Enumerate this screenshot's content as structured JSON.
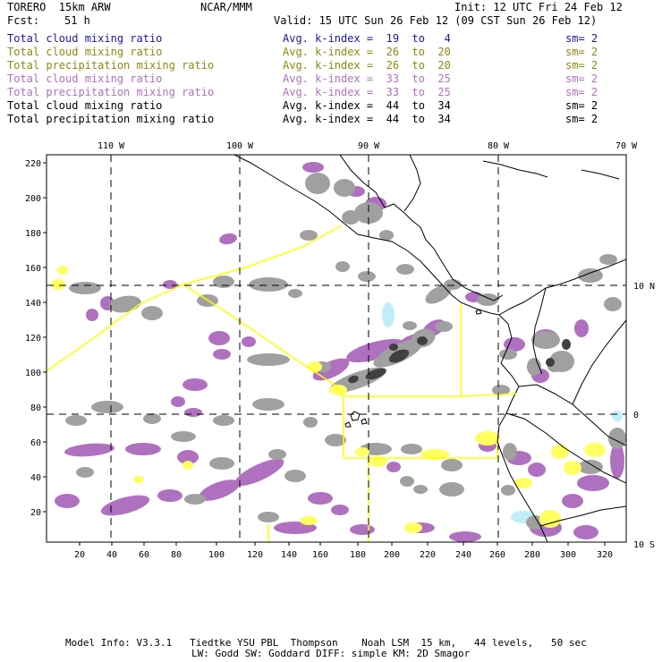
{
  "header": {
    "model": "TORERO  15km ARW",
    "center": "NCAR/MMM",
    "init": "Init: 12 UTC Fri 24 Feb 12",
    "fcst_label": "Fcst:",
    "fcst_value": "51 h",
    "valid": "Valid: 15 UTC Sun 26 Feb 12 (09 CST Sun 26 Feb 12)"
  },
  "legend_rows": [
    {
      "field": "Total cloud mixing ratio",
      "kindex": "Avg. k-index =  19  to   4",
      "sm": "sm= 2",
      "color": "#1a1aa0"
    },
    {
      "field": "Total cloud mixing ratio",
      "kindex": "Avg. k-index =  26  to  20",
      "sm": "sm= 2",
      "color": "#8a8a10"
    },
    {
      "field": "Total precipitation mixing ratio",
      "kindex": "Avg. k-index =  26  to  20",
      "sm": "sm= 2",
      "color": "#8a8a10"
    },
    {
      "field": "Total cloud mixing ratio",
      "kindex": "Avg. k-index =  33  to  25",
      "sm": "sm= 2",
      "color": "#b070c0"
    },
    {
      "field": "Total precipitation mixing ratio",
      "kindex": "Avg. k-index =  33  to  25",
      "sm": "sm= 2",
      "color": "#b070c0"
    },
    {
      "field": "Total cloud mixing ratio",
      "kindex": "Avg. k-index =  44  to  34",
      "sm": "sm= 2",
      "color": "#000000"
    },
    {
      "field": "Total precipitation mixing ratio",
      "kindex": "Avg. k-index =  44  to  34",
      "sm": "sm= 2",
      "color": "#000000"
    }
  ],
  "map": {
    "lon_labels": [
      "110 W",
      "100 W",
      "90 W",
      "80 W",
      "70 W"
    ],
    "lat_labels": [
      "10 N",
      "0",
      "10 S"
    ],
    "y_ticks": [
      "220",
      "200",
      "180",
      "160",
      "140",
      "120",
      "100",
      "80",
      "60",
      "40",
      "20"
    ],
    "x_ticks": [
      "20",
      "40",
      "60",
      "80",
      "100",
      "120",
      "140",
      "160",
      "180",
      "200",
      "220",
      "240",
      "260",
      "280",
      "300",
      "320"
    ],
    "colors": {
      "purple": "#b070c0",
      "gray": "#a0a0a0",
      "dark": "#404040",
      "yellow": "#ffff60",
      "cyan": "#c0eef8",
      "outline": "#ffff00"
    }
  },
  "footer": {
    "line1": "Model Info: V3.3.1   Tiedtke YSU PBL  Thompson    Noah LSM  15 km,   44 levels,   50 sec",
    "line2": "LW: Godd SW: Goddard DIFF: simple KM: 2D Smagor"
  }
}
